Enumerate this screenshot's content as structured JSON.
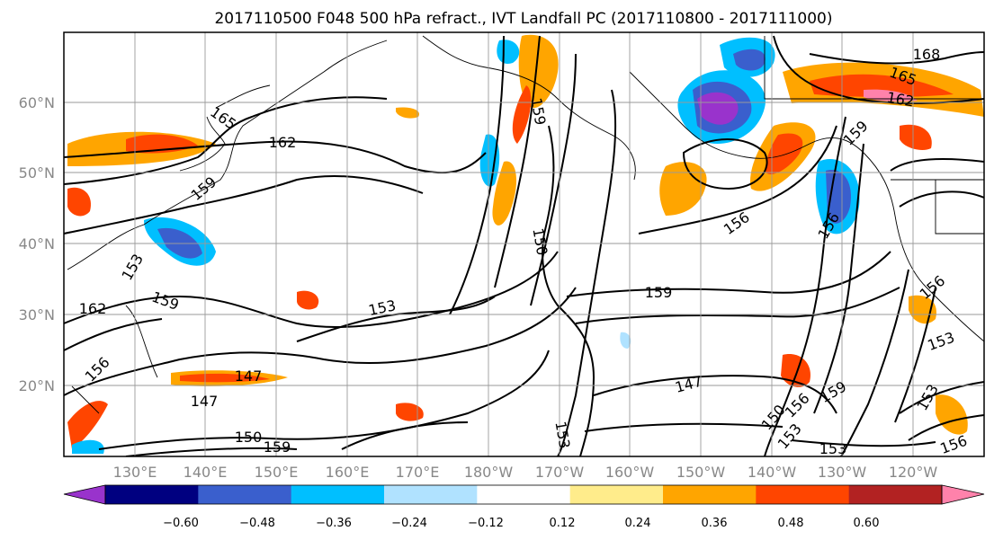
{
  "title": "2017110500 F048 500 hPa refract., IVT Landfall PC (2017110800 - 2017111000)",
  "map": {
    "lat_labels": [
      "60°N",
      "50°N",
      "40°N",
      "30°N",
      "20°N"
    ],
    "lon_labels": [
      "130°E",
      "140°E",
      "150°E",
      "160°E",
      "170°E",
      "180°W",
      "170°W",
      "160°W",
      "150°W",
      "140°W",
      "130°W",
      "120°W"
    ],
    "contour_labels": [
      "168",
      "165",
      "162",
      "165",
      "162",
      "159",
      "159",
      "156",
      "156",
      "159",
      "153",
      "150",
      "162",
      "159",
      "153",
      "159",
      "147",
      "147",
      "150",
      "159",
      "156",
      "147",
      "150",
      "153",
      "153",
      "156",
      "159",
      "156",
      "153",
      "153",
      "156",
      "153"
    ],
    "coastline_color": "#000000",
    "contour_color": "#000000"
  },
  "colorbar": {
    "colors": [
      "#9933cc",
      "#000080",
      "#3a5fcd",
      "#00bfff",
      "#b0e2ff",
      "#ffffff",
      "#ffec8b",
      "#ffa500",
      "#ff4500",
      "#b22222",
      "#ff82ab"
    ],
    "tick_labels": [
      "−0.60",
      "−0.48",
      "−0.36",
      "−0.24",
      "−0.12",
      "0.12",
      "0.24",
      "0.36",
      "0.48",
      "0.60"
    ],
    "extend": "both"
  }
}
